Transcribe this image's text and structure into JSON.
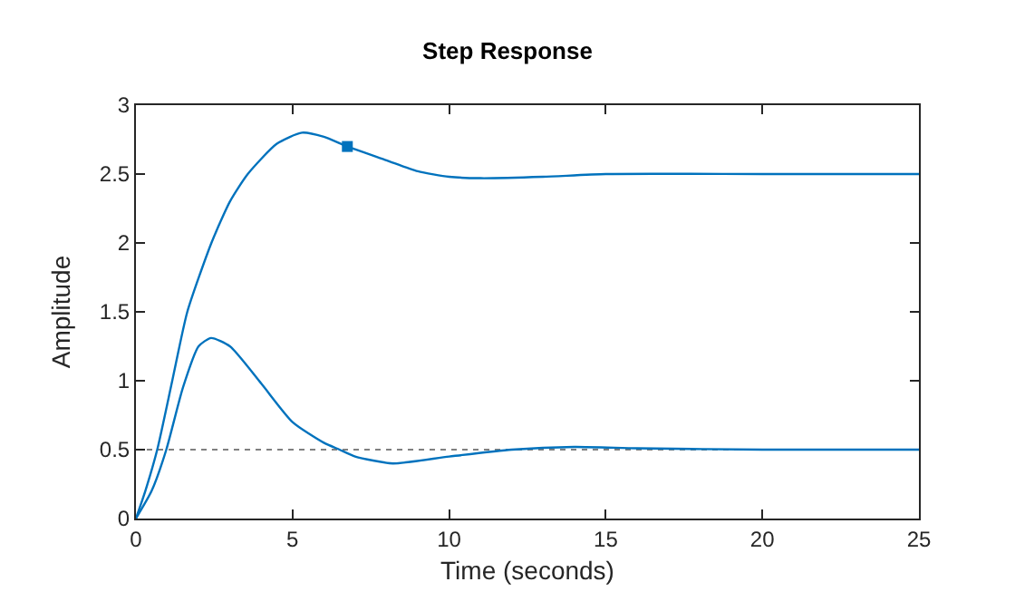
{
  "chart_data": {
    "type": "line",
    "title": "Step Response",
    "xlabel": "Time (seconds)",
    "ylabel": "Amplitude",
    "series": [
      {
        "color": "#0072bd",
        "x": [
          0,
          0.3,
          0.68,
          1.16,
          1.64,
          2.41,
          3.0,
          3.57,
          4.5,
          5.3,
          6.0,
          6.75,
          8.0,
          9.0,
          10.0,
          11.0,
          13.0,
          15.0,
          20.0,
          25.0
        ],
        "values": [
          0,
          0.2,
          0.5,
          1.0,
          1.5,
          2.0,
          2.3,
          2.5,
          2.72,
          2.8,
          2.77,
          2.7,
          2.6,
          2.52,
          2.48,
          2.47,
          2.48,
          2.5,
          2.5,
          2.5
        ]
      },
      {
        "color": "#0072bd",
        "x": [
          0,
          0.5,
          0.97,
          1.5,
          2.0,
          2.4,
          3.0,
          4.0,
          5.0,
          6.0,
          6.5,
          7.0,
          8.2,
          10.0,
          12.0,
          14.0,
          16.0,
          20.0,
          25.0
        ],
        "values": [
          0,
          0.2,
          0.5,
          0.95,
          1.25,
          1.31,
          1.25,
          0.98,
          0.7,
          0.55,
          0.5,
          0.45,
          0.4,
          0.45,
          0.5,
          0.52,
          0.51,
          0.5,
          0.5
        ]
      },
      {
        "type": "scatter",
        "marker": "square",
        "color": "#0072bd",
        "x": [
          6.75
        ],
        "values": [
          2.7
        ]
      }
    ],
    "ref_lines": [
      {
        "axis": "y",
        "value": 0.5,
        "color": "#808080",
        "line_style": "dotted"
      }
    ],
    "xlim": [
      0,
      25
    ],
    "xticks": [
      0,
      5,
      10,
      15,
      20,
      25
    ],
    "ylim": [
      0,
      3
    ],
    "yticks": [
      0,
      0.5,
      1,
      1.5,
      2,
      2.5,
      3
    ],
    "grid": false,
    "marker": "none",
    "line_style": "solid"
  }
}
